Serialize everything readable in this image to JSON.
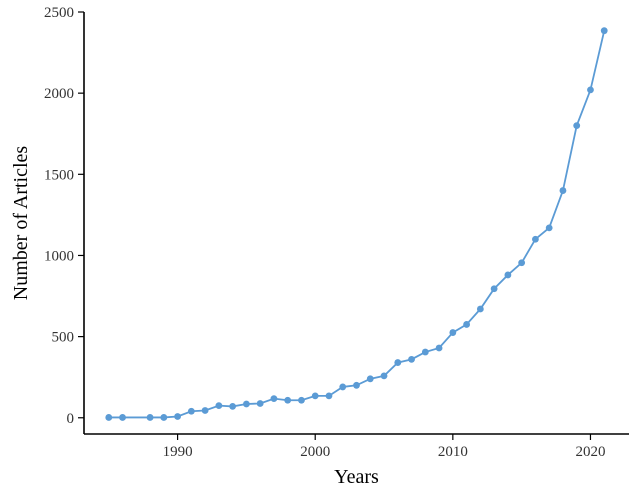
{
  "chart_data": {
    "type": "line",
    "title": "",
    "xlabel": "Years",
    "ylabel": "Number of Articles",
    "xlim": [
      1983.2,
      2022.8
    ],
    "ylim": [
      -100,
      2500
    ],
    "x_ticks": [
      1990,
      2000,
      2010,
      2020
    ],
    "y_ticks": [
      0,
      500,
      1000,
      1500,
      2000,
      2500
    ],
    "x_tick_labels": [
      "1990",
      "2000",
      "2010",
      "2020"
    ],
    "y_tick_labels": [
      "0",
      "500",
      "1000",
      "1500",
      "2000",
      "2500"
    ],
    "grid": false,
    "color": "#5b9bd5",
    "series": [
      {
        "x": [
          1985,
          1986,
          1988,
          1989,
          1990,
          1991,
          1992,
          1993,
          1994,
          1995,
          1996,
          1997,
          1998,
          1999,
          2000,
          2001,
          2002,
          2003,
          2004,
          2005,
          2006,
          2007,
          2008,
          2009,
          2010,
          2011,
          2012,
          2013,
          2014,
          2015,
          2016,
          2017,
          2018,
          2019,
          2020,
          2021
        ],
        "values": [
          2,
          2,
          2,
          2,
          8,
          40,
          45,
          75,
          70,
          85,
          88,
          118,
          108,
          108,
          135,
          135,
          190,
          200,
          240,
          258,
          340,
          360,
          405,
          430,
          525,
          575,
          670,
          795,
          880,
          955,
          1100,
          1170,
          1400,
          1800,
          2020,
          2385
        ]
      }
    ]
  }
}
